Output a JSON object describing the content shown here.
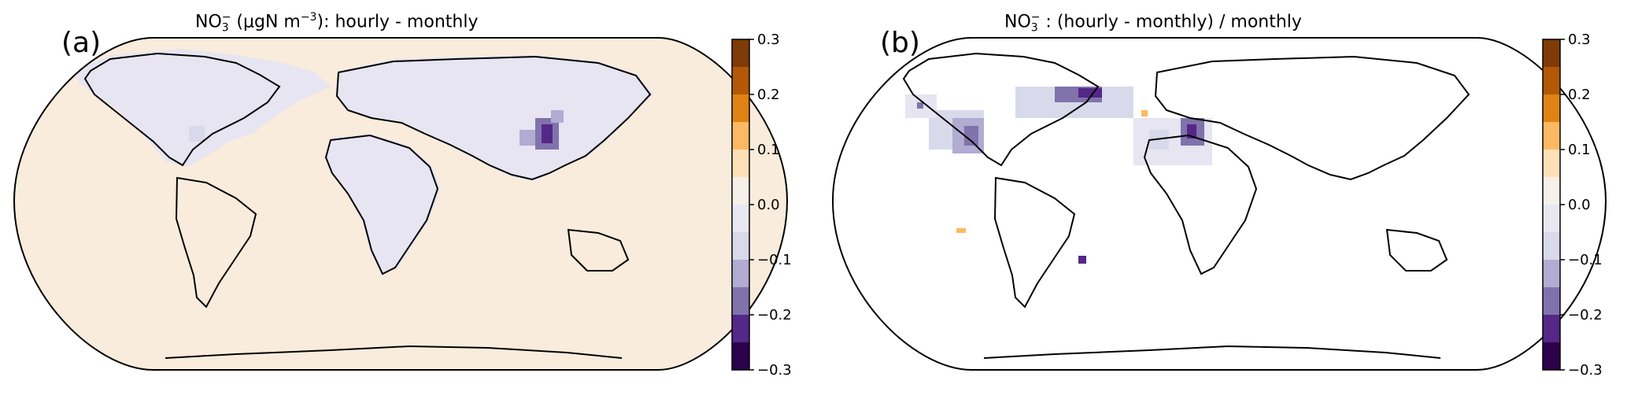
{
  "panels": [
    {
      "letter": "(a)",
      "title_prefix": "NO",
      "title_sub": "3",
      "title_sup": "−",
      "title_rest": "  (μgN m",
      "title_exp": "−3",
      "title_tail": "): hourly - monthly",
      "background": "slight-positive",
      "colorbar": {
        "ticks": [
          "0.3",
          "0.2",
          "0.1",
          "0.0",
          "−0.1",
          "−0.2",
          "−0.3"
        ]
      }
    },
    {
      "letter": "(b)",
      "title_prefix": "NO",
      "title_sub": "3",
      "title_sup": "−",
      "title_rest": " : (hourly - monthly) / monthly",
      "title_exp": "",
      "title_tail": "",
      "background": "none",
      "colorbar": {
        "ticks": [
          "0.3",
          "0.2",
          "0.1",
          "0.0",
          "−0.1",
          "−0.2",
          "−0.3"
        ]
      }
    }
  ],
  "colormap": {
    "name": "PuOr diverging",
    "levels": [
      "#7f3b08",
      "#b35806",
      "#e08214",
      "#fdb863",
      "#fee0b6",
      "#f7f0e8",
      "#e8e8f3",
      "#d8daeb",
      "#b2abd2",
      "#8073ac",
      "#542788",
      "#2d004b"
    ],
    "range": [
      -0.3,
      0.3
    ]
  }
}
